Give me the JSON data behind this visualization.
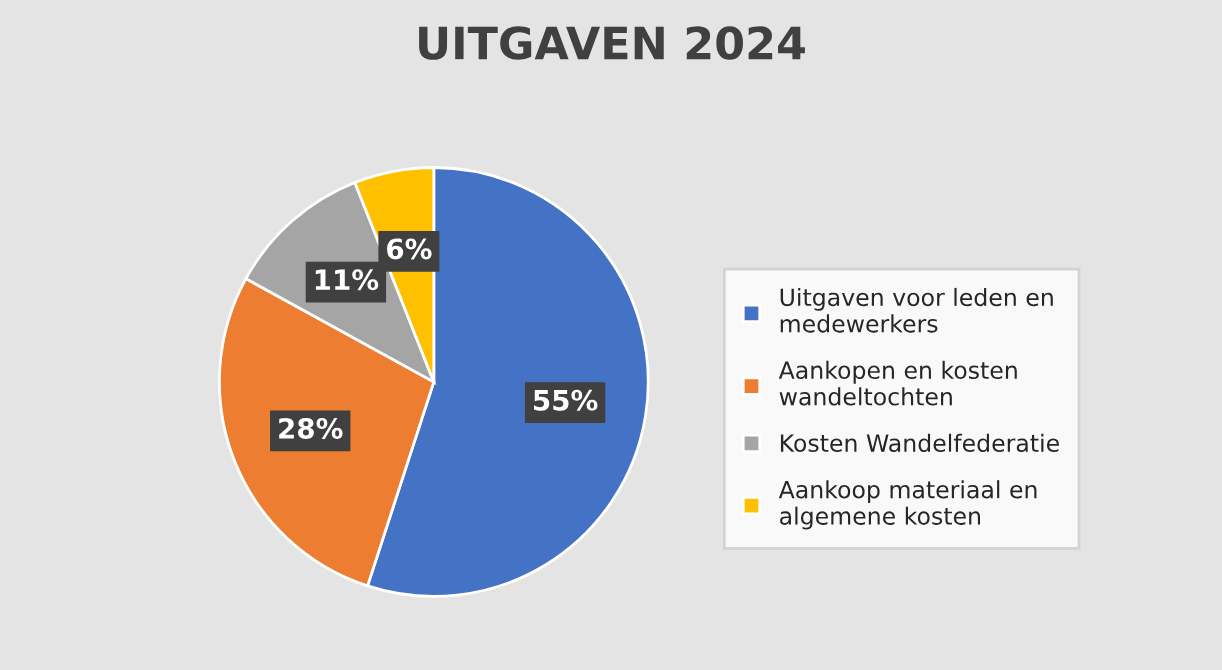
{
  "chart_data": {
    "type": "pie",
    "title": "UITGAVEN 2024",
    "categories": [
      "Uitgaven voor leden en medewerkers",
      "Aankopen en kosten wandeltochten",
      "Kosten Wandelfederatie",
      "Aankoop materiaal en algemene kosten"
    ],
    "values": [
      55,
      28,
      11,
      6
    ],
    "colors": [
      "#4472c4",
      "#ed7d31",
      "#a5a5a5",
      "#ffc000"
    ],
    "value_labels": [
      "55%",
      "28%",
      "11%",
      "6%"
    ],
    "legend": "right"
  }
}
